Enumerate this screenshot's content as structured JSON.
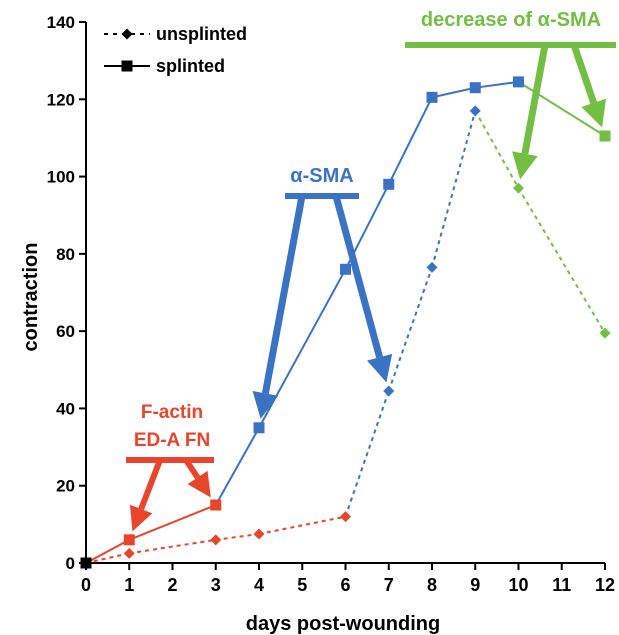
{
  "chart_data": {
    "type": "line",
    "xlabel": "days post-wounding",
    "ylabel": "contraction",
    "xlim": [
      0,
      12
    ],
    "ylim": [
      0,
      140
    ],
    "x_ticks": [
      0,
      1,
      2,
      3,
      4,
      5,
      6,
      7,
      8,
      9,
      10,
      11,
      12
    ],
    "y_ticks": [
      0,
      20,
      40,
      60,
      80,
      100,
      120,
      140
    ],
    "legend": {
      "placement": "top-left",
      "entries": [
        {
          "label": "unsplinted",
          "style": "dotted",
          "marker": "diamond"
        },
        {
          "label": "splinted",
          "style": "solid",
          "marker": "square"
        }
      ]
    },
    "series": [
      {
        "name": "splinted",
        "style": "solid",
        "marker": "square",
        "points": [
          {
            "x": 0,
            "y": 0,
            "color": "#000000"
          },
          {
            "x": 1,
            "y": 6,
            "color": "#e8452c"
          },
          {
            "x": 3,
            "y": 15,
            "color": "#e8452c"
          },
          {
            "x": 4,
            "y": 35,
            "color": "#3a73c4"
          },
          {
            "x": 6,
            "y": 76,
            "color": "#3a73c4"
          },
          {
            "x": 7,
            "y": 98,
            "color": "#3a73c4"
          },
          {
            "x": 8,
            "y": 120.5,
            "color": "#3a73c4"
          },
          {
            "x": 9,
            "y": 123,
            "color": "#3a73c4"
          },
          {
            "x": 10,
            "y": 124.5,
            "color": "#3a73c4"
          },
          {
            "x": 12,
            "y": 110.5,
            "color": "#72bf44"
          }
        ]
      },
      {
        "name": "unsplinted",
        "style": "dotted",
        "marker": "diamond",
        "points": [
          {
            "x": 0,
            "y": 0,
            "color": "#000000"
          },
          {
            "x": 1,
            "y": 2.5,
            "color": "#e8452c"
          },
          {
            "x": 3,
            "y": 6,
            "color": "#e8452c"
          },
          {
            "x": 4,
            "y": 7.5,
            "color": "#e8452c"
          },
          {
            "x": 6,
            "y": 12,
            "color": "#e8452c"
          },
          {
            "x": 7,
            "y": 44.5,
            "color": "#3a73c4"
          },
          {
            "x": 8,
            "y": 76.5,
            "color": "#3a73c4"
          },
          {
            "x": 9,
            "y": 117,
            "color": "#3a73c4"
          },
          {
            "x": 10,
            "y": 97,
            "color": "#72bf44"
          },
          {
            "x": 12,
            "y": 59.5,
            "color": "#72bf44"
          }
        ]
      }
    ],
    "annotations": [
      {
        "lines": [
          "F-actin",
          "ED-A FN"
        ],
        "color": "#e8452c",
        "targets": [
          {
            "x": 1,
            "y": 6
          },
          {
            "x": 3,
            "y": 15
          }
        ]
      },
      {
        "lines": [
          "α-SMA"
        ],
        "color": "#3a73c4",
        "targets": [
          {
            "x": 4,
            "y": 35
          },
          {
            "x": 7,
            "y": 44.5
          }
        ]
      },
      {
        "lines": [
          "decrease of α-SMA"
        ],
        "color": "#72bf44",
        "targets": [
          {
            "x": 10,
            "y": 97
          },
          {
            "x": 12,
            "y": 110.5
          }
        ]
      }
    ],
    "colors": {
      "axis": "#000000",
      "early": "#e8452c",
      "middle": "#3a73c4",
      "late": "#72bf44"
    }
  }
}
